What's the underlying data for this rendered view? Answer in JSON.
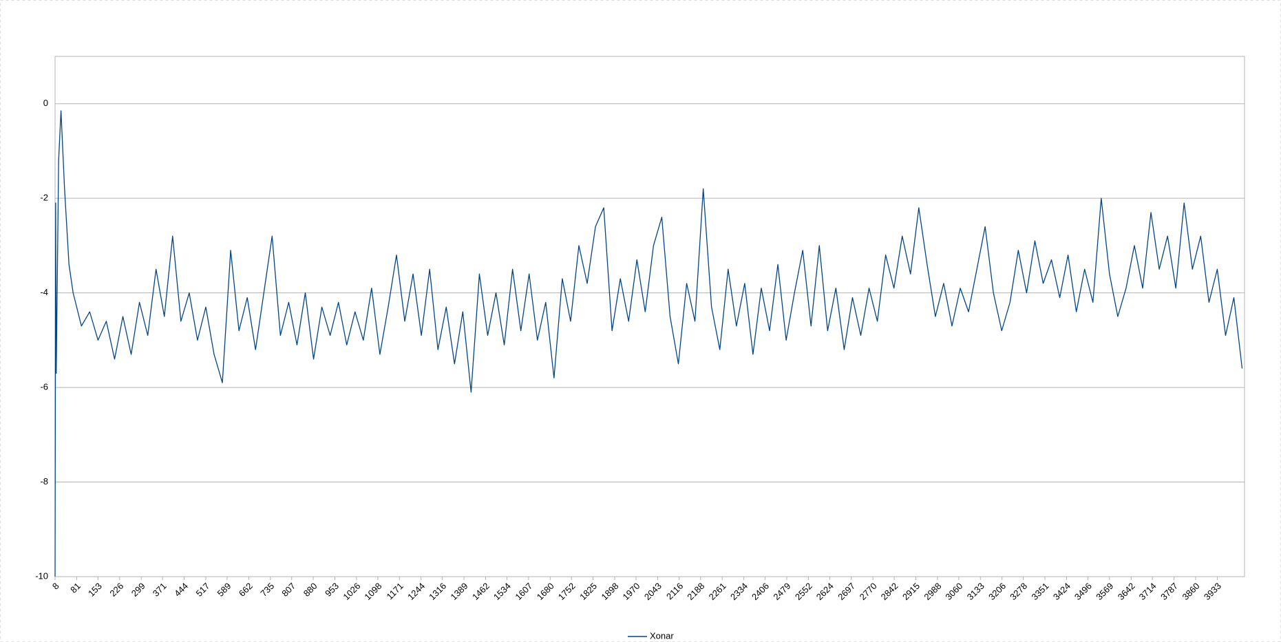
{
  "chart_data": {
    "type": "line",
    "x": [
      8,
      10,
      12,
      20,
      28,
      40,
      55,
      69,
      97,
      125,
      153,
      181,
      209,
      237,
      265,
      293,
      321,
      349,
      377,
      405,
      433,
      461,
      489,
      517,
      545,
      573,
      601,
      629,
      657,
      685,
      713,
      741,
      769,
      797,
      825,
      853,
      881,
      909,
      937,
      965,
      993,
      1021,
      1049,
      1077,
      1105,
      1133,
      1161,
      1189,
      1217,
      1245,
      1273,
      1301,
      1329,
      1357,
      1385,
      1413,
      1441,
      1469,
      1497,
      1525,
      1553,
      1581,
      1609,
      1637,
      1665,
      1693,
      1721,
      1749,
      1777,
      1805,
      1833,
      1861,
      1889,
      1917,
      1945,
      1973,
      2001,
      2029,
      2057,
      2085,
      2113,
      2141,
      2169,
      2197,
      2225,
      2253,
      2281,
      2309,
      2337,
      2365,
      2393,
      2421,
      2449,
      2477,
      2505,
      2533,
      2561,
      2589,
      2617,
      2645,
      2673,
      2701,
      2729,
      2757,
      2785,
      2813,
      2841,
      2869,
      2897,
      2925,
      2953,
      2981,
      3009,
      3037,
      3065,
      3093,
      3121,
      3149,
      3177,
      3205,
      3233,
      3261,
      3289,
      3317,
      3345,
      3373,
      3401,
      3429,
      3457,
      3485,
      3513,
      3541,
      3569,
      3597,
      3625,
      3653,
      3681,
      3709,
      3737,
      3765,
      3793,
      3821,
      3849,
      3877,
      3905,
      3933,
      3961,
      3989,
      4017
    ],
    "series": [
      {
        "name": "Xonar",
        "color": "#004586",
        "values": [
          -10,
          -2.1,
          -5.7,
          -1.2,
          -0.15,
          -1.8,
          -3.4,
          -4.0,
          -4.7,
          -4.4,
          -5.0,
          -4.6,
          -5.4,
          -4.5,
          -5.3,
          -4.2,
          -4.9,
          -3.5,
          -4.5,
          -2.8,
          -4.6,
          -4.0,
          -5.0,
          -4.3,
          -5.3,
          -5.9,
          -3.1,
          -4.8,
          -4.1,
          -5.2,
          -4.0,
          -2.8,
          -4.9,
          -4.2,
          -5.1,
          -4.0,
          -5.4,
          -4.3,
          -4.9,
          -4.2,
          -5.1,
          -4.4,
          -5.0,
          -3.9,
          -5.3,
          -4.3,
          -3.2,
          -4.6,
          -3.6,
          -4.9,
          -3.5,
          -5.2,
          -4.3,
          -5.5,
          -4.4,
          -6.1,
          -3.6,
          -4.9,
          -4.0,
          -5.1,
          -3.5,
          -4.8,
          -3.6,
          -5.0,
          -4.2,
          -5.8,
          -3.7,
          -4.6,
          -3.0,
          -3.8,
          -2.6,
          -2.2,
          -4.8,
          -3.7,
          -4.6,
          -3.3,
          -4.4,
          -3.0,
          -2.4,
          -4.5,
          -5.5,
          -3.8,
          -4.6,
          -1.8,
          -4.3,
          -5.2,
          -3.5,
          -4.7,
          -3.8,
          -5.3,
          -3.9,
          -4.8,
          -3.4,
          -5.0,
          -4.0,
          -3.1,
          -4.7,
          -3.0,
          -4.8,
          -3.9,
          -5.2,
          -4.1,
          -4.9,
          -3.9,
          -4.6,
          -3.2,
          -3.9,
          -2.8,
          -3.6,
          -2.2,
          -3.4,
          -4.5,
          -3.8,
          -4.7,
          -3.9,
          -4.4,
          -3.5,
          -2.6,
          -4.0,
          -4.8,
          -4.2,
          -3.1,
          -4.0,
          -2.9,
          -3.8,
          -3.3,
          -4.1,
          -3.2,
          -4.4,
          -3.5,
          -4.2,
          -2.0,
          -3.6,
          -4.5,
          -3.9,
          -3.0,
          -3.9,
          -2.3,
          -3.5,
          -2.8,
          -3.9,
          -2.1,
          -3.5,
          -2.8,
          -4.2,
          -3.5,
          -4.9,
          -4.1,
          -5.6
        ]
      }
    ],
    "xlim": [
      8,
      4025
    ],
    "xticks": [
      8,
      81,
      153,
      226,
      299,
      371,
      444,
      517,
      589,
      662,
      735,
      807,
      880,
      953,
      1026,
      1098,
      1171,
      1244,
      1316,
      1389,
      1462,
      1534,
      1607,
      1680,
      1752,
      1825,
      1898,
      1970,
      2043,
      2116,
      2188,
      2261,
      2334,
      2406,
      2479,
      2552,
      2624,
      2697,
      2770,
      2842,
      2915,
      2988,
      3060,
      3133,
      3206,
      3278,
      3351,
      3424,
      3496,
      3569,
      3642,
      3714,
      3787,
      3860,
      3933
    ],
    "ylim": [
      -10,
      1
    ],
    "yticks": [
      -10,
      -8,
      -6,
      -4,
      -2,
      0
    ],
    "grid": true
  }
}
